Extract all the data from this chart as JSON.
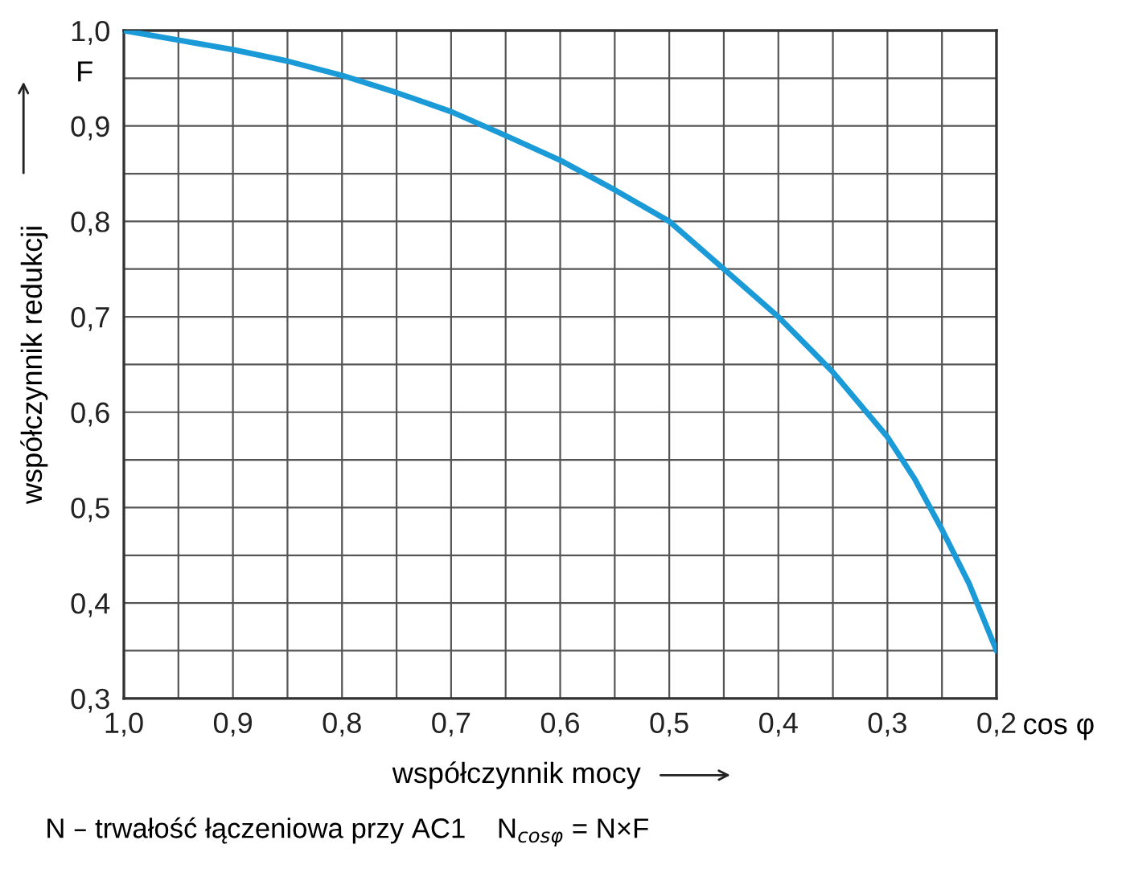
{
  "chart_data": {
    "type": "line",
    "xlabel": "współczynnik mocy",
    "ylabel": "współczynnik redukcji",
    "x": [
      1.0,
      0.95,
      0.9,
      0.85,
      0.8,
      0.75,
      0.7,
      0.65,
      0.6,
      0.55,
      0.5,
      0.45,
      0.4,
      0.35,
      0.3,
      0.275,
      0.25,
      0.225,
      0.2
    ],
    "series": [
      {
        "color": "#1a9ad6",
        "values": [
          1.0,
          0.99,
          0.98,
          0.968,
          0.953,
          0.935,
          0.915,
          0.89,
          0.864,
          0.833,
          0.8,
          0.75,
          0.7,
          0.642,
          0.574,
          0.53,
          0.477,
          0.42,
          0.35
        ]
      }
    ],
    "xlim": [
      1.0,
      0.2
    ],
    "ylim": [
      0.3,
      1.0
    ],
    "xticks": [
      {
        "value": 1.0,
        "label": "1,0"
      },
      {
        "value": 0.95,
        "label": null
      },
      {
        "value": 0.9,
        "label": "0,9"
      },
      {
        "value": 0.85,
        "label": null
      },
      {
        "value": 0.8,
        "label": "0,8"
      },
      {
        "value": 0.75,
        "label": null
      },
      {
        "value": 0.7,
        "label": "0,7"
      },
      {
        "value": 0.65,
        "label": null
      },
      {
        "value": 0.6,
        "label": "0,6"
      },
      {
        "value": 0.55,
        "label": null
      },
      {
        "value": 0.5,
        "label": "0,5"
      },
      {
        "value": 0.45,
        "label": null
      },
      {
        "value": 0.4,
        "label": "0,4"
      },
      {
        "value": 0.35,
        "label": null
      },
      {
        "value": 0.3,
        "label": "0,3"
      },
      {
        "value": 0.25,
        "label": null
      },
      {
        "value": 0.2,
        "label": "0,2"
      }
    ],
    "yticks": [
      {
        "value": 0.3,
        "label": "0,3"
      },
      {
        "value": 0.35,
        "label": null
      },
      {
        "value": 0.4,
        "label": "0,4"
      },
      {
        "value": 0.45,
        "label": null
      },
      {
        "value": 0.5,
        "label": "0,5"
      },
      {
        "value": 0.55,
        "label": null
      },
      {
        "value": 0.6,
        "label": "0,6"
      },
      {
        "value": 0.65,
        "label": null
      },
      {
        "value": 0.7,
        "label": "0,7"
      },
      {
        "value": 0.75,
        "label": null
      },
      {
        "value": 0.8,
        "label": "0,8"
      },
      {
        "value": 0.85,
        "label": null
      },
      {
        "value": 0.9,
        "label": "0,9"
      },
      {
        "value": 0.95,
        "label": null
      },
      {
        "value": 1.0,
        "label": "1,0"
      }
    ],
    "grid": true,
    "marker": "none",
    "line_style": "solid",
    "legend": false,
    "annotations": [
      "F",
      "cos φ",
      "N – trwałość łączeniowa przy AC1    N$_{cosφ}$ = N×F"
    ]
  }
}
